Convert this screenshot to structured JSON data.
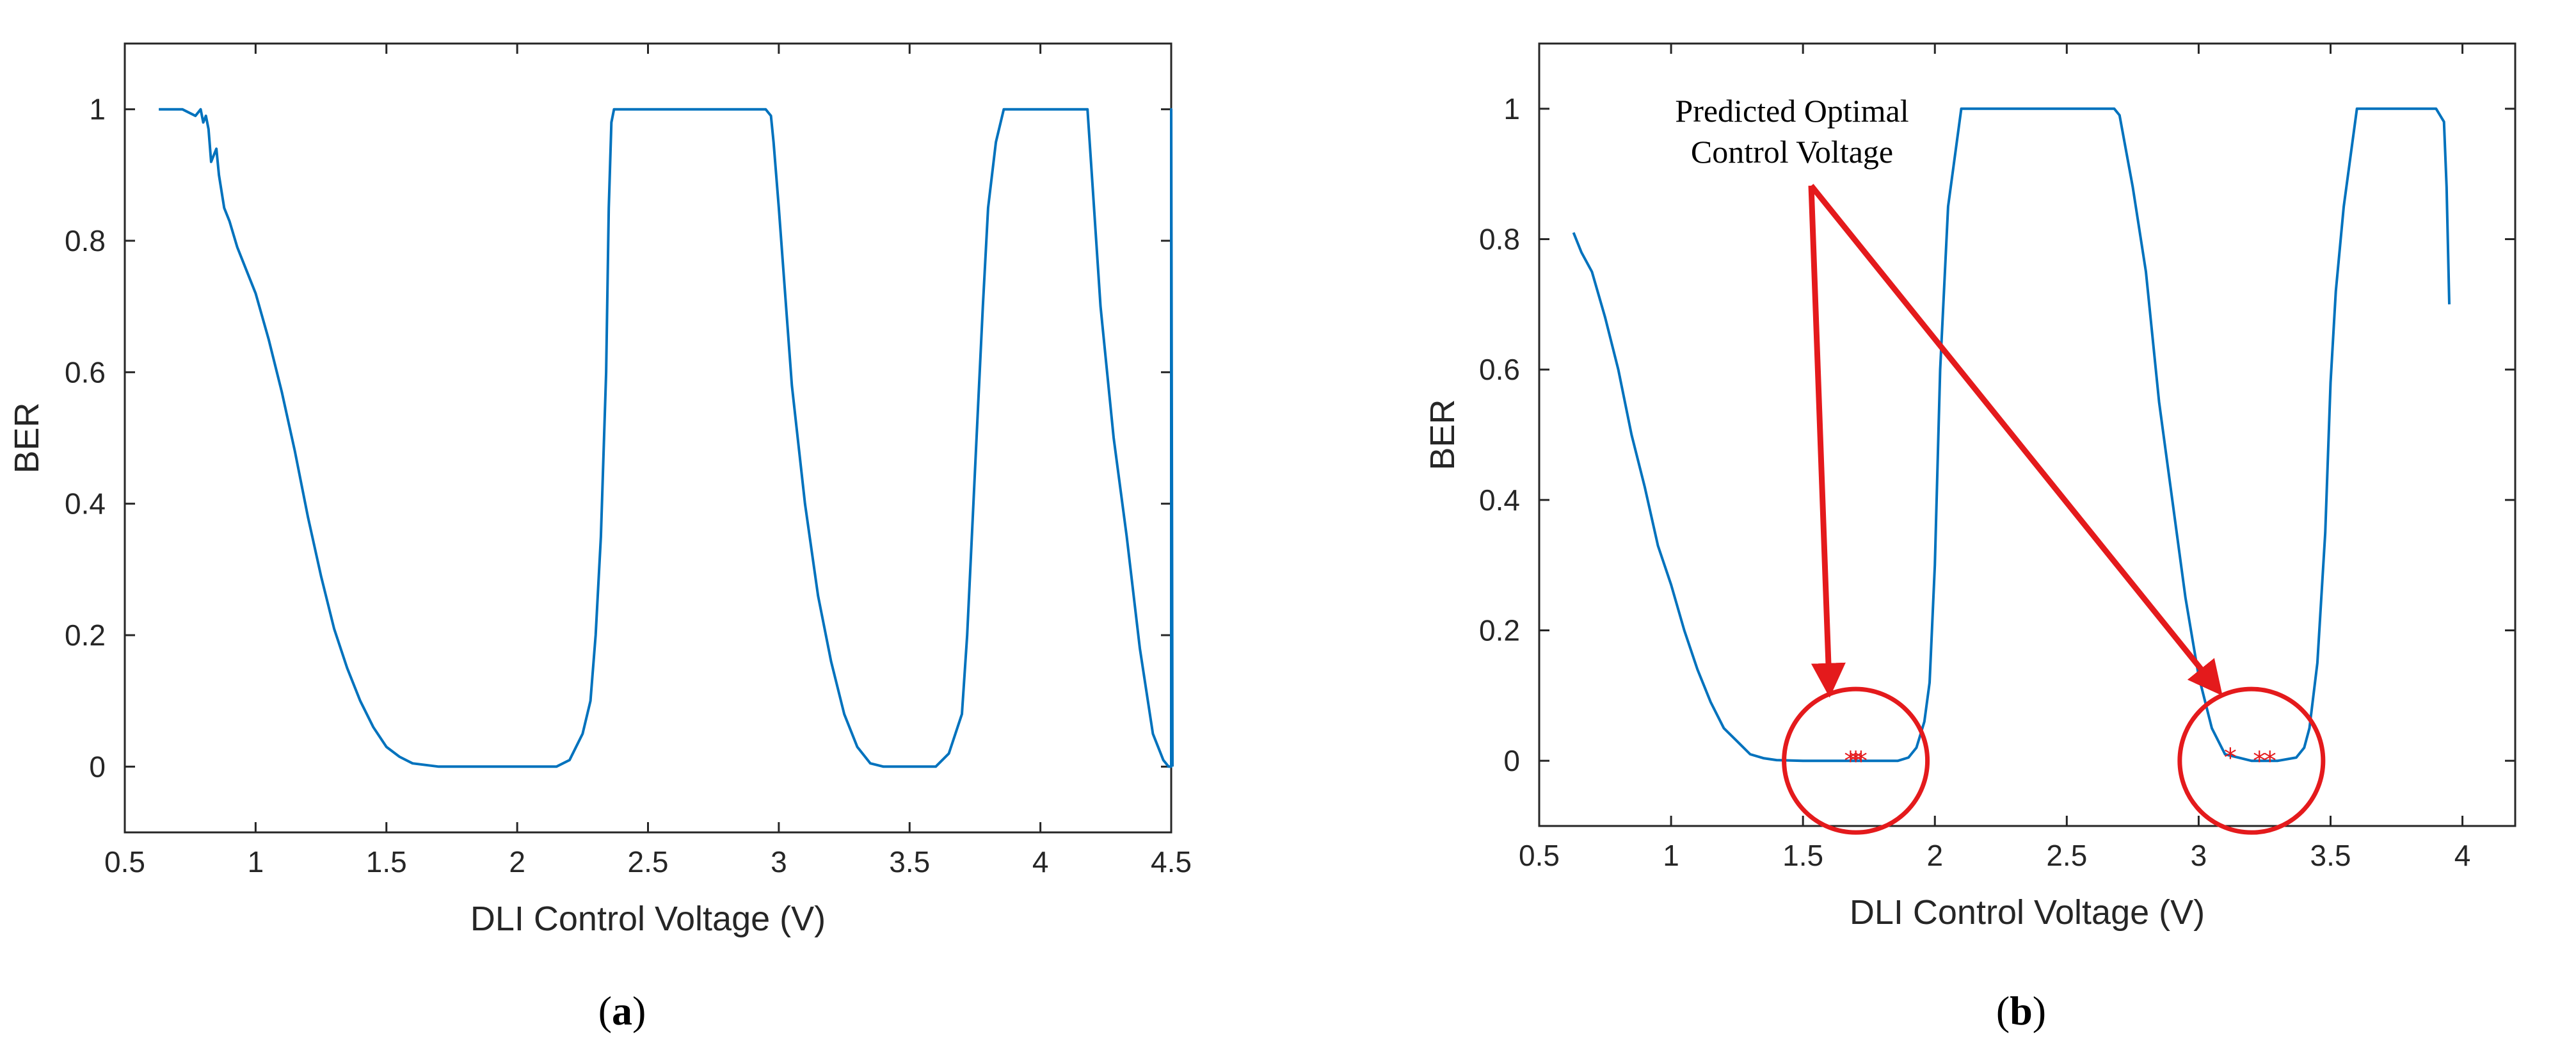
{
  "chart_data": [
    {
      "id": "a",
      "type": "line",
      "panel_label": "a",
      "xlabel": "DLI Control Voltage (V)",
      "ylabel": "BER",
      "xlim": [
        0.5,
        4.5
      ],
      "ylim": [
        -0.1,
        1.1
      ],
      "xticks": [
        0.5,
        1,
        1.5,
        2,
        2.5,
        3,
        3.5,
        4,
        4.5
      ],
      "xtick_labels": [
        "0.5",
        "1",
        "1.5",
        "2",
        "2.5",
        "3",
        "3.5",
        "4",
        "4.5"
      ],
      "yticks": [
        0,
        0.2,
        0.4,
        0.6,
        0.8,
        1
      ],
      "ytick_labels": [
        "0",
        "0.2",
        "0.4",
        "0.6",
        "0.8",
        "1"
      ],
      "series": [
        {
          "name": "BER",
          "x": [
            0.63,
            0.72,
            0.77,
            0.79,
            0.8,
            0.81,
            0.82,
            0.83,
            0.84,
            0.85,
            0.86,
            0.88,
            0.9,
            0.93,
            0.97,
            1.0,
            1.05,
            1.1,
            1.15,
            1.2,
            1.25,
            1.3,
            1.35,
            1.4,
            1.45,
            1.5,
            1.55,
            1.6,
            1.7,
            1.8,
            2.0,
            2.15,
            2.2,
            2.25,
            2.28,
            2.3,
            2.32,
            2.34,
            2.35,
            2.36,
            2.37,
            2.5,
            2.7,
            2.85,
            2.95,
            2.97,
            2.98,
            3.0,
            3.05,
            3.1,
            3.15,
            3.2,
            3.25,
            3.3,
            3.35,
            3.4,
            3.5,
            3.6,
            3.65,
            3.7,
            3.72,
            3.75,
            3.78,
            3.8,
            3.83,
            3.86,
            3.9,
            4.0,
            4.1,
            4.18,
            4.2,
            4.23,
            4.28,
            4.33,
            4.38,
            4.43,
            4.47,
            4.49,
            4.5,
            4.5,
            4.505
          ],
          "y": [
            1.0,
            1.0,
            0.99,
            1.0,
            0.98,
            0.99,
            0.97,
            0.92,
            0.93,
            0.94,
            0.9,
            0.85,
            0.83,
            0.79,
            0.75,
            0.72,
            0.65,
            0.57,
            0.48,
            0.38,
            0.29,
            0.21,
            0.15,
            0.1,
            0.06,
            0.03,
            0.015,
            0.005,
            0.0,
            0.0,
            0.0,
            0.0,
            0.01,
            0.05,
            0.1,
            0.2,
            0.35,
            0.6,
            0.85,
            0.98,
            1.0,
            1.0,
            1.0,
            1.0,
            1.0,
            0.99,
            0.95,
            0.85,
            0.58,
            0.4,
            0.26,
            0.16,
            0.08,
            0.03,
            0.005,
            0.0,
            0.0,
            0.0,
            0.02,
            0.08,
            0.2,
            0.45,
            0.7,
            0.85,
            0.95,
            1.0,
            1.0,
            1.0,
            1.0,
            1.0,
            0.88,
            0.7,
            0.5,
            0.35,
            0.18,
            0.05,
            0.01,
            0.0,
            0.0,
            1.0,
            0.0
          ]
        }
      ]
    },
    {
      "id": "b",
      "type": "line",
      "panel_label": "b",
      "xlabel": "DLI Control Voltage (V)",
      "ylabel": "BER",
      "xlim": [
        0.5,
        4.2
      ],
      "ylim": [
        -0.1,
        1.1
      ],
      "xticks": [
        0.5,
        1,
        1.5,
        2,
        2.5,
        3,
        3.5,
        4
      ],
      "xtick_labels": [
        "0.5",
        "1",
        "1.5",
        "2",
        "2.5",
        "3",
        "3.5",
        "4"
      ],
      "yticks": [
        0,
        0.2,
        0.4,
        0.6,
        0.8,
        1
      ],
      "ytick_labels": [
        "0",
        "0.2",
        "0.4",
        "0.6",
        "0.8",
        "1"
      ],
      "series": [
        {
          "name": "BER",
          "x": [
            0.63,
            0.66,
            0.7,
            0.75,
            0.8,
            0.85,
            0.9,
            0.95,
            1.0,
            1.05,
            1.1,
            1.15,
            1.2,
            1.25,
            1.3,
            1.35,
            1.4,
            1.5,
            1.6,
            1.7,
            1.8,
            1.86,
            1.9,
            1.93,
            1.96,
            1.98,
            2.0,
            2.02,
            2.05,
            2.1,
            2.3,
            2.5,
            2.6,
            2.68,
            2.7,
            2.75,
            2.8,
            2.85,
            2.9,
            2.95,
            3.0,
            3.05,
            3.1,
            3.2,
            3.3,
            3.37,
            3.4,
            3.42,
            3.45,
            3.48,
            3.5,
            3.52,
            3.55,
            3.6,
            3.7,
            3.8,
            3.9,
            3.93,
            3.94,
            3.95
          ],
          "y": [
            0.81,
            0.78,
            0.75,
            0.68,
            0.6,
            0.5,
            0.42,
            0.33,
            0.27,
            0.2,
            0.14,
            0.09,
            0.05,
            0.03,
            0.01,
            0.004,
            0.001,
            0.0,
            0.0,
            0.0,
            0.0,
            0.0,
            0.005,
            0.02,
            0.06,
            0.12,
            0.3,
            0.6,
            0.85,
            1.0,
            1.0,
            1.0,
            1.0,
            1.0,
            0.99,
            0.88,
            0.75,
            0.55,
            0.4,
            0.25,
            0.13,
            0.05,
            0.01,
            0.0,
            0.0,
            0.005,
            0.02,
            0.05,
            0.15,
            0.35,
            0.58,
            0.72,
            0.85,
            1.0,
            1.0,
            1.0,
            1.0,
            0.98,
            0.88,
            0.7
          ]
        }
      ],
      "markers": {
        "symbol": "*",
        "points": [
          [
            1.68,
            0.0
          ],
          [
            1.7,
            0.0
          ],
          [
            1.72,
            0.0
          ],
          [
            3.12,
            0.005
          ],
          [
            3.23,
            0.0
          ],
          [
            3.27,
            0.0
          ]
        ]
      },
      "highlight_circles": [
        {
          "center": [
            1.7,
            0.0
          ]
        },
        {
          "center": [
            3.2,
            0.0
          ]
        }
      ],
      "annotation": {
        "lines": [
          "Predicted Optimal",
          "Control Voltage"
        ],
        "arrows_to": [
          [
            1.6,
            0.11
          ],
          [
            3.07,
            0.11
          ]
        ]
      }
    }
  ]
}
